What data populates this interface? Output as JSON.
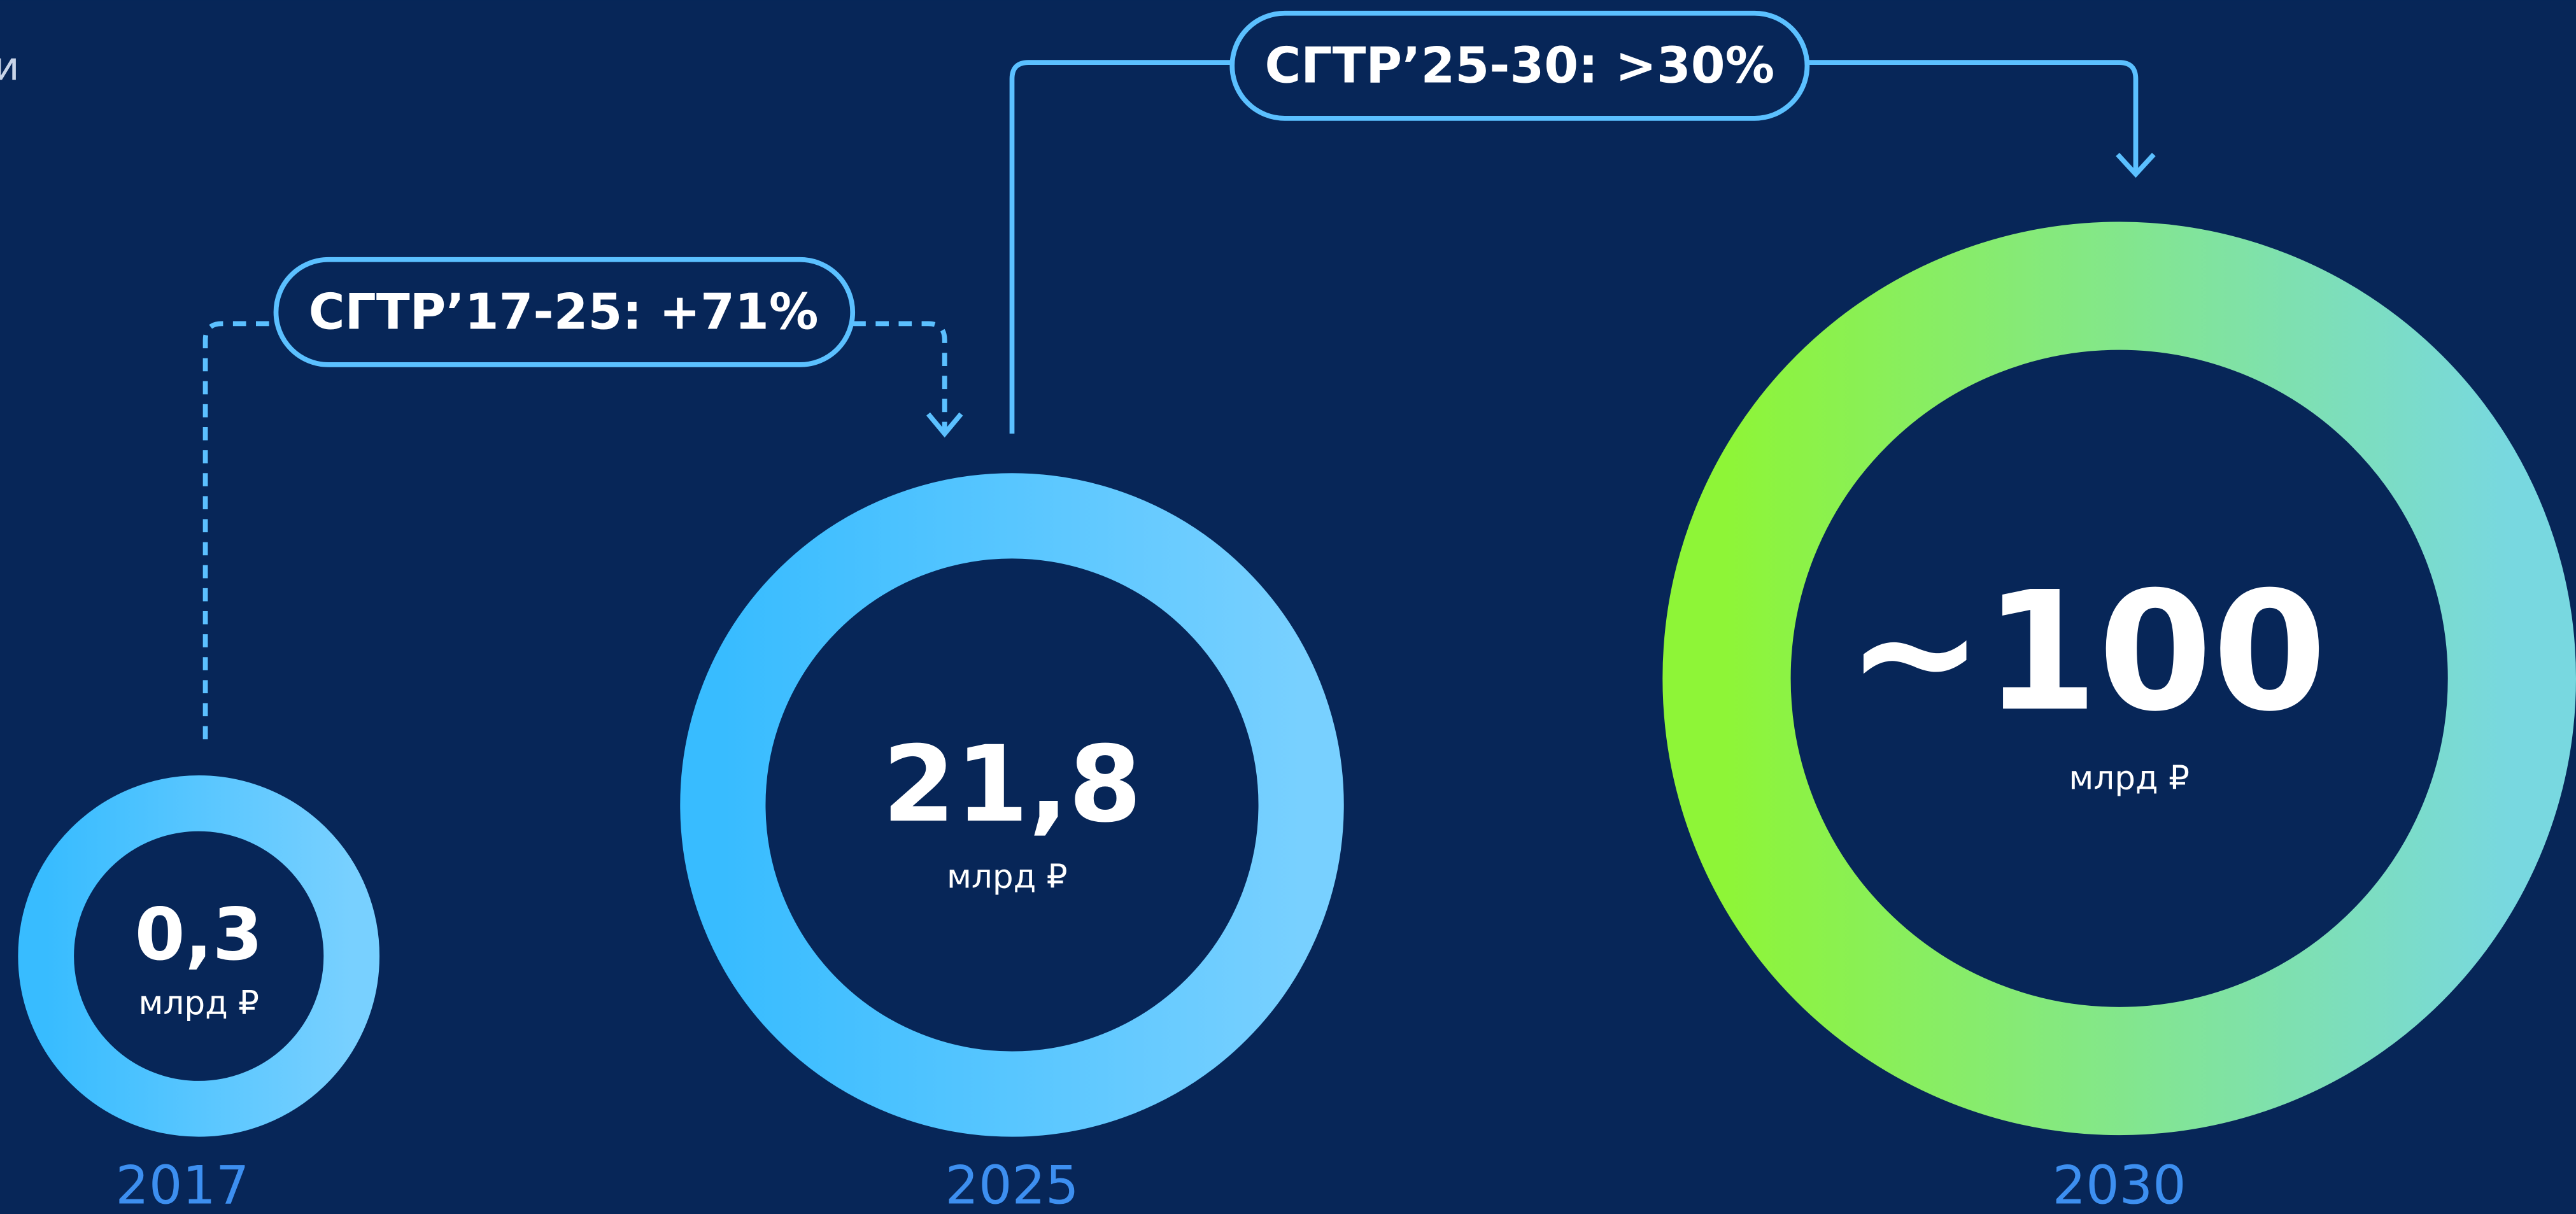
{
  "corner_text": "и",
  "growth": [
    {
      "label": "СГТР’17-25: +71%"
    },
    {
      "label": "СГТР’25-30: >30%"
    }
  ],
  "items": [
    {
      "value": "0,3",
      "unit": "млрд ₽",
      "year": "2017"
    },
    {
      "value": "21,8",
      "unit": "млрд ₽",
      "year": "2025"
    },
    {
      "value": "~100",
      "unit": "млрд ₽",
      "year": "2030"
    }
  ]
}
